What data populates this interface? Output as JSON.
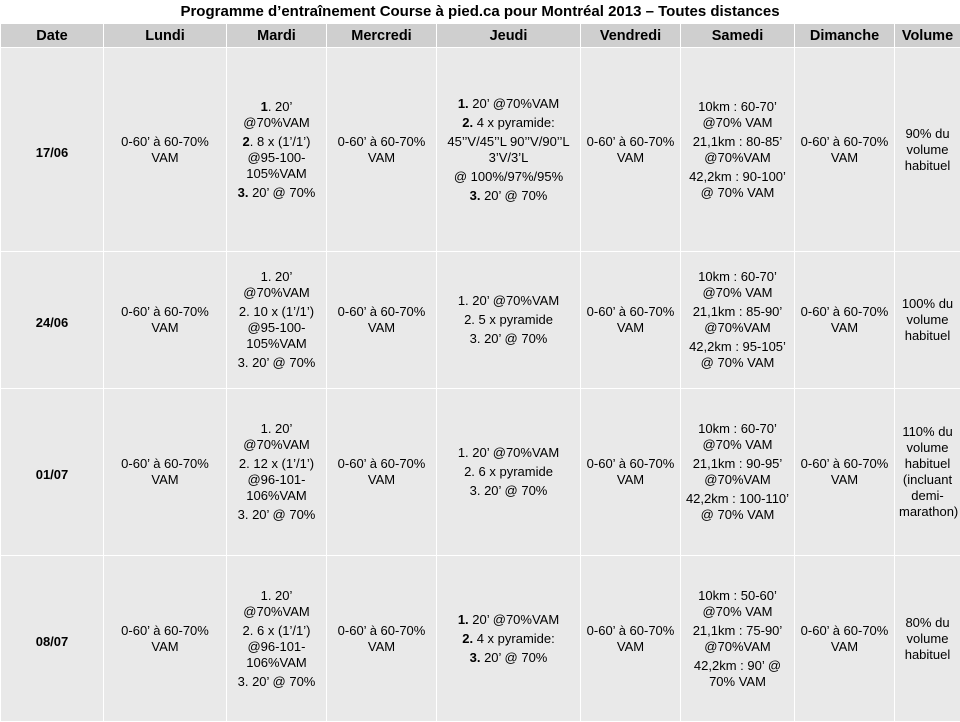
{
  "title": "Programme  d’entraînement Course à pied.ca pour Montréal 2013 – Toutes distances",
  "headers": [
    "Date",
    "Lundi",
    "Mardi",
    "Mercredi",
    "Jeudi",
    "Vendredi",
    "Samedi",
    "Dimanche",
    "Volume"
  ],
  "rows": [
    {
      "date": "17/06",
      "lundi": "0-60’ à 60-70% VAM",
      "mardi": {
        "items": [
          {
            "num": "1",
            "text": ". 20’ @70%VAM"
          },
          {
            "num": "2",
            "text": ". 8 x (1’/1’) @95-100-105%VAM"
          },
          {
            "num": "3.",
            "text": " 20’ @ 70%"
          }
        ]
      },
      "mercredi": "0-60’ à 60-70% VAM",
      "jeudi": {
        "items": [
          {
            "num": "1.",
            "text": " 20’ @70%VAM"
          },
          {
            "num": "2.",
            "text": " 4 x pyramide:"
          },
          {
            "num": "",
            "text": "45’’V/45’’L 90’’V/90’’L 3’V/3’L"
          },
          {
            "num": "",
            "text": "@ 100%/97%/95%"
          },
          {
            "num": "3.",
            "text": " 20’ @ 70%"
          }
        ]
      },
      "vendredi": "0-60’ à 60-70% VAM",
      "samedi": [
        "10km : 60-70’ @70% VAM",
        "21,1km : 80-85’ @70%VAM",
        "42,2km : 90-100’ @ 70% VAM"
      ],
      "dimanche": "0-60’ à 60-70% VAM",
      "volume": "90% du volume habituel"
    },
    {
      "date": "24/06",
      "lundi": "0-60’ à 60-70% VAM",
      "mardi": {
        "items": [
          {
            "num": "",
            "text": "1. 20’ @70%VAM"
          },
          {
            "num": "",
            "text": "2. 10 x (1’/1’) @95-100-105%VAM"
          },
          {
            "num": "",
            "text": "3. 20’ @ 70%"
          }
        ]
      },
      "mercredi": "0-60’ à 60-70% VAM",
      "jeudi": {
        "items": [
          {
            "num": "",
            "text": "1. 20’ @70%VAM"
          },
          {
            "num": "",
            "text": "2. 5 x pyramide"
          },
          {
            "num": "",
            "text": "3. 20’ @ 70%"
          }
        ]
      },
      "vendredi": "0-60’ à 60-70% VAM",
      "samedi": [
        "10km : 60-70’ @70% VAM",
        "21,1km : 85-90’ @70%VAM",
        "42,2km : 95-105’ @ 70% VAM"
      ],
      "dimanche": "0-60’ à 60-70% VAM",
      "volume": "100% du volume habituel"
    },
    {
      "date": "01/07",
      "lundi": "0-60’ à 60-70% VAM",
      "mardi": {
        "items": [
          {
            "num": "",
            "text": "1. 20’ @70%VAM"
          },
          {
            "num": "",
            "text": "2. 12 x (1’/1’) @96-101-106%VAM"
          },
          {
            "num": "",
            "text": "3. 20’ @ 70%"
          }
        ]
      },
      "mercredi": "0-60’ à 60-70% VAM",
      "jeudi": {
        "items": [
          {
            "num": "",
            "text": "1. 20’ @70%VAM"
          },
          {
            "num": "",
            "text": "2. 6 x pyramide"
          },
          {
            "num": "",
            "text": "3. 20’ @ 70%"
          }
        ]
      },
      "vendredi": "0-60’ à 60-70% VAM",
      "samedi": [
        "10km : 60-70’ @70% VAM",
        "21,1km : 90-95’ @70%VAM",
        "42,2km : 100-110’ @ 70% VAM"
      ],
      "dimanche": "0-60’ à 60-70% VAM",
      "volume": "110% du volume habituel (incluant demi-marathon)"
    },
    {
      "date": "08/07",
      "lundi": "0-60’ à 60-70% VAM",
      "mardi": {
        "items": [
          {
            "num": "",
            "text": "1. 20’ @70%VAM"
          },
          {
            "num": "",
            "text": "2. 6 x (1’/1’) @96-101-106%VAM"
          },
          {
            "num": "",
            "text": "3. 20’ @ 70%"
          }
        ]
      },
      "mercredi": "0-60’ à 60-70% VAM",
      "jeudi": {
        "items": [
          {
            "num": "1.",
            "text": " 20’ @70%VAM"
          },
          {
            "num": "2.",
            "text": " 4 x pyramide:"
          },
          {
            "num": "3.",
            "text": " 20’ @ 70%"
          }
        ]
      },
      "vendredi": "0-60’ à 60-70% VAM",
      "samedi": [
        "10km : 50-60’ @70% VAM",
        "21,1km : 75-90’ @70%VAM",
        "42,2km : 90’ @ 70% VAM"
      ],
      "dimanche": "0-60’ à 60-70% VAM",
      "volume": "80% du volume habituel"
    }
  ]
}
